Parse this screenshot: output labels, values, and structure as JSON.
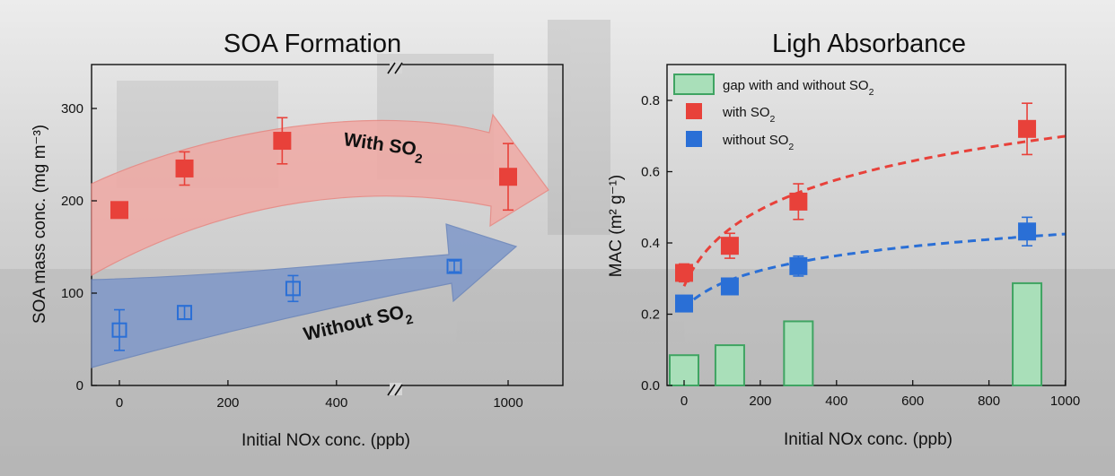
{
  "colors": {
    "red": "#e8413a",
    "blue": "#2a6fd6",
    "red_arrow": "#f0a9a4",
    "blue_arrow": "#7f98c9",
    "bar_fill": "#a9dfb9",
    "bar_edge": "#3fa462"
  },
  "chart_data": [
    {
      "type": "scatter",
      "title": "SOA Formation",
      "xlabel": "Initial NOx conc. (ppb)",
      "ylabel": "SOA mass conc. (mg m⁻³)",
      "xticks": [
        "0",
        "200",
        "400",
        "1000"
      ],
      "yticks": [
        "0",
        "100",
        "200",
        "300"
      ],
      "ylim": [
        0,
        340
      ],
      "x_axis_break": true,
      "arrow_labels": {
        "with": {
          "text": "With SO",
          "sub": "2"
        },
        "without": {
          "text": "Without SO",
          "sub": "2"
        }
      },
      "series": [
        {
          "label": "with SO2",
          "marker": "filled-square",
          "color": "#e8413a",
          "points": [
            {
              "x": 0,
              "y": 190,
              "err": 5
            },
            {
              "x": 120,
              "y": 235,
              "err": 18
            },
            {
              "x": 300,
              "y": 265,
              "err": 25
            },
            {
              "x": 1000,
              "y": 226,
              "err": 36
            }
          ]
        },
        {
          "label": "without SO2",
          "marker": "open-square",
          "color": "#2a6fd6",
          "points": [
            {
              "x": 0,
              "y": 60,
              "err": 22
            },
            {
              "x": 120,
              "y": 79,
              "err": 7
            },
            {
              "x": 320,
              "y": 105,
              "err": 14
            },
            {
              "x": 900,
              "y": 129,
              "err": 6
            }
          ]
        }
      ]
    },
    {
      "type": "scatter+bar",
      "title": "Ligh Absorbance",
      "xlabel": "Initial NOx conc. (ppb)",
      "ylabel": "MAC (m² g⁻¹)",
      "xticks": [
        "0",
        "200",
        "400",
        "600",
        "800",
        "1000"
      ],
      "yticks": [
        "0.0",
        "0.2",
        "0.4",
        "0.6",
        "0.8"
      ],
      "xlim": [
        -40,
        1000
      ],
      "ylim": [
        0,
        0.86
      ],
      "legend": [
        {
          "label": "gap with and without SO",
          "sub": "2",
          "kind": "bar"
        },
        {
          "label": "with SO",
          "sub": "2",
          "kind": "red"
        },
        {
          "label": "without SO",
          "sub": "2",
          "kind": "blue"
        }
      ],
      "bars": [
        {
          "x": 0,
          "value": 0.085
        },
        {
          "x": 120,
          "value": 0.113
        },
        {
          "x": 300,
          "value": 0.18
        },
        {
          "x": 900,
          "value": 0.287
        }
      ],
      "series": [
        {
          "label": "with SO2",
          "color": "#e8413a",
          "points": [
            {
              "x": 0,
              "y": 0.316,
              "err": 0.025
            },
            {
              "x": 120,
              "y": 0.392,
              "err": 0.035
            },
            {
              "x": 300,
              "y": 0.516,
              "err": 0.05
            },
            {
              "x": 900,
              "y": 0.72,
              "err": 0.072
            }
          ]
        },
        {
          "label": "without SO2",
          "color": "#2a6fd6",
          "points": [
            {
              "x": 0,
              "y": 0.23,
              "err": 0.018
            },
            {
              "x": 120,
              "y": 0.278,
              "err": 0.016
            },
            {
              "x": 300,
              "y": 0.335,
              "err": 0.028
            },
            {
              "x": 900,
              "y": 0.432,
              "err": 0.04
            }
          ]
        }
      ]
    }
  ]
}
